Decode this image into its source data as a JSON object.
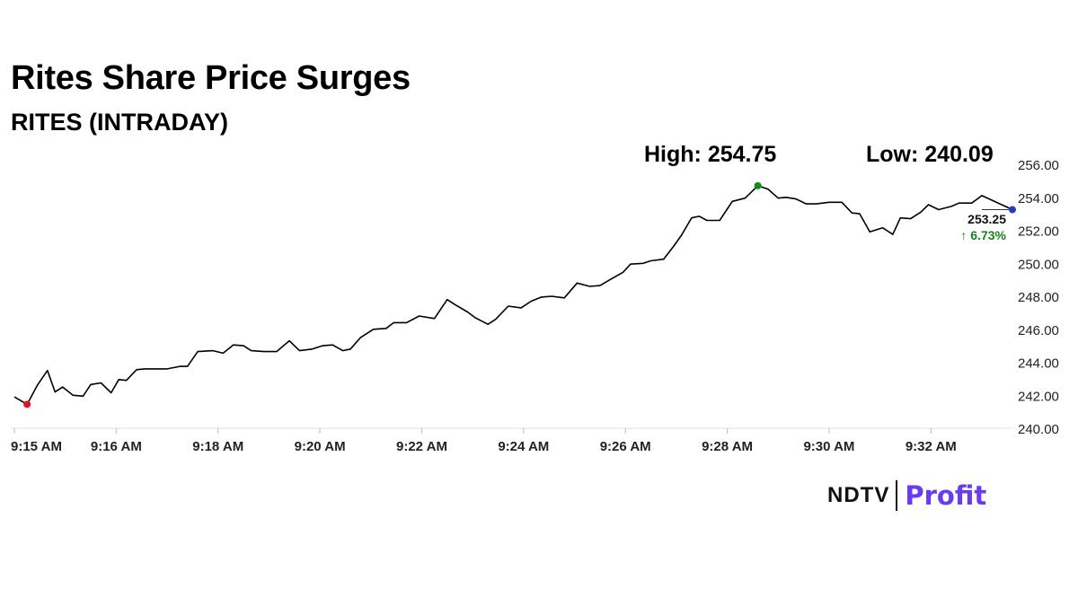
{
  "header": {
    "title": "Rites Share Price Surges",
    "subtitle": "RITES (INTRADAY)",
    "high_label": "High: 254.75",
    "low_label": "Low: 240.09"
  },
  "brand": {
    "ndtv": "NDTV",
    "profit": "Profit"
  },
  "chart_data": {
    "type": "line",
    "title": "Rites Share Price Surges",
    "subtitle": "RITES (INTRADAY)",
    "xlabel": "",
    "ylabel": "",
    "x_range": [
      0,
      19.6
    ],
    "ylim": [
      240,
      256
    ],
    "y_ticks": [
      240,
      242,
      244,
      246,
      248,
      250,
      252,
      254,
      256
    ],
    "y_tick_labels": [
      "240.00",
      "242.00",
      "244.00",
      "246.00",
      "248.00",
      "250.00",
      "252.00",
      "254.00",
      "256.00"
    ],
    "x_ticks": [
      0,
      2,
      4,
      6,
      8,
      10,
      12,
      14,
      16,
      18
    ],
    "x_tick_labels": [
      "9:15 AM",
      "9:16 AM",
      "9:18 AM",
      "9:20 AM",
      "9:22 AM",
      "9:24 AM",
      "9:26 AM",
      "9:28 AM",
      "9:30 AM",
      "9:32 AM"
    ],
    "grid": false,
    "last_value": "253.25",
    "change_label": "↑ 6.73%",
    "colors": {
      "line": "#000000",
      "low_marker": "#e8101b",
      "high_marker": "#168a16",
      "last_marker": "#1f3fbf",
      "change": "#16841c"
    },
    "series": [
      {
        "x": [
          0,
          0.25,
          0.45,
          0.65,
          0.8,
          0.95,
          1.15,
          1.35,
          1.5,
          1.7,
          1.9,
          2.05,
          2.2,
          2.4,
          2.55,
          2.75,
          3,
          3.25,
          3.4,
          3.6,
          3.9,
          4.1,
          4.3,
          4.5,
          4.65,
          4.9,
          5.15,
          5.4,
          5.6,
          5.85,
          6.05,
          6.25,
          6.45,
          6.6,
          6.8,
          7.05,
          7.3,
          7.45,
          7.7,
          7.95,
          8.25,
          8.5,
          8.65,
          8.9,
          9.05,
          9.3,
          9.45,
          9.7,
          9.95,
          10.15,
          10.35,
          10.55,
          10.8,
          11.05,
          11.3,
          11.5,
          11.75,
          11.95,
          12.1,
          12.35,
          12.5,
          12.75,
          12.95,
          13.1,
          13.3,
          13.45,
          13.6,
          13.85,
          14.1,
          14.35,
          14.6,
          14.8,
          15,
          15.15,
          15.35,
          15.55,
          15.75,
          16,
          16.25,
          16.45,
          16.6,
          16.8,
          17.05,
          17.25,
          17.4,
          17.6,
          17.8,
          17.95,
          18.15,
          18.4,
          18.55,
          18.8,
          19,
          19.6
        ],
        "values": [
          241.9,
          241.45,
          242.6,
          243.5,
          242.2,
          242.5,
          242.0,
          241.95,
          242.65,
          242.75,
          242.15,
          242.95,
          242.9,
          243.55,
          243.6,
          243.6,
          243.6,
          243.75,
          243.75,
          244.65,
          244.7,
          244.55,
          245.05,
          245.0,
          244.7,
          244.65,
          244.65,
          245.3,
          244.7,
          244.8,
          245.0,
          245.05,
          244.7,
          244.8,
          245.5,
          246.0,
          246.05,
          246.4,
          246.4,
          246.8,
          246.65,
          247.8,
          247.5,
          247.05,
          246.7,
          246.3,
          246.6,
          247.4,
          247.3,
          247.7,
          247.95,
          248.0,
          247.9,
          248.8,
          248.6,
          248.65,
          249.1,
          249.45,
          249.95,
          250.0,
          250.15,
          250.25,
          251.05,
          251.7,
          252.75,
          252.85,
          252.6,
          252.6,
          253.75,
          253.95,
          254.7,
          254.5,
          253.95,
          254.0,
          253.9,
          253.6,
          253.6,
          253.7,
          253.7,
          253.05,
          253.0,
          251.9,
          252.15,
          251.75,
          252.75,
          252.7,
          253.1,
          253.55,
          253.25,
          253.45,
          253.65,
          253.65,
          254.1,
          253.25
        ]
      }
    ]
  }
}
